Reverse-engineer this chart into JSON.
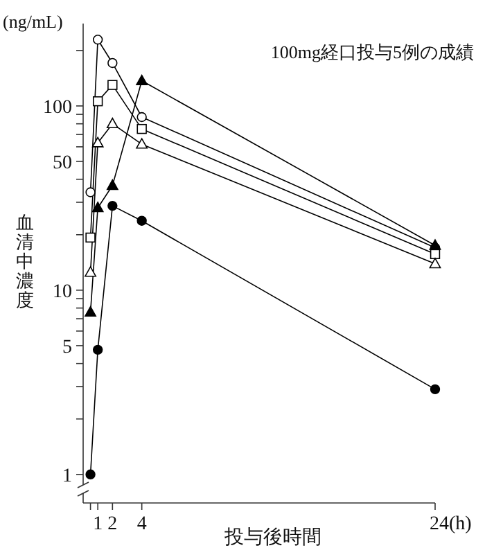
{
  "chart_data": {
    "type": "line",
    "title": "100mg経口投与5例の成績",
    "xlabel": "投与後時間",
    "ylabel": "血清中濃度",
    "annotations": [
      "(ng/mL)"
    ],
    "x": [
      0.5,
      1,
      2,
      4,
      24
    ],
    "series": [
      {
        "color": "#000000",
        "marker": "circle",
        "colors": [
          "#ffffff",
          "#ffffff",
          "#ffffff",
          "#ffffff",
          "#ffffff"
        ],
        "values": [
          34,
          229,
          171,
          87,
          17
        ]
      },
      {
        "color": "#000000",
        "marker": "square",
        "colors": [
          "#ffffff",
          "#ffffff",
          "#ffffff",
          "#ffffff",
          "#ffffff"
        ],
        "values": [
          19.3,
          106,
          130,
          75,
          15.7
        ]
      },
      {
        "color": "#000000",
        "marker": "triangle",
        "colors": [
          "#ffffff",
          "#ffffff",
          "#ffffff",
          "#ffffff",
          "#ffffff"
        ],
        "values": [
          12.5,
          63,
          80,
          62,
          13.9
        ]
      },
      {
        "color": "#000000",
        "marker": "triangle",
        "values": [
          7.6,
          28,
          37,
          137,
          17.5
        ]
      },
      {
        "color": "#000000",
        "marker": "circle",
        "values": [
          1,
          4.75,
          28.7,
          23.8,
          2.9
        ]
      }
    ],
    "xlim": [
      0,
      24
    ],
    "xticks": [
      {
        "value": 0.5,
        "label": null
      },
      1,
      2,
      4,
      {
        "value": 24,
        "label": "24(h)"
      }
    ],
    "ylim": [
      0.7,
      280
    ],
    "log": "y",
    "yticks": [
      1,
      {
        "value": 2,
        "label": null
      },
      {
        "value": 3,
        "label": null
      },
      {
        "value": 4,
        "label": null
      },
      5,
      {
        "value": 6,
        "label": null
      },
      {
        "value": 7,
        "label": null
      },
      {
        "value": 8,
        "label": null
      },
      {
        "value": 9,
        "label": null
      },
      10,
      {
        "value": 20,
        "label": null
      },
      {
        "value": 30,
        "label": null
      },
      {
        "value": 40,
        "label": null
      },
      50,
      {
        "value": 60,
        "label": null
      },
      {
        "value": 70,
        "label": null
      },
      {
        "value": 80,
        "label": null
      },
      {
        "value": 90,
        "label": null
      },
      100,
      {
        "value": 200,
        "label": null
      }
    ],
    "grid": false,
    "line_style": "solid"
  }
}
